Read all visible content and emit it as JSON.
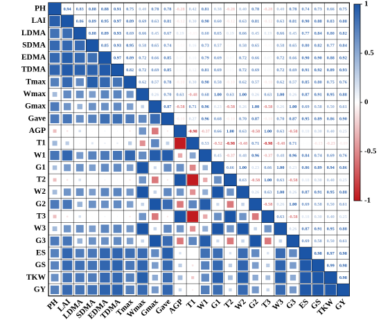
{
  "chart_data": {
    "type": "correlogram",
    "variables": [
      "PH",
      "LAI",
      "LDMA",
      "SDMA",
      "EDMA",
      "TDMA",
      "Tmax",
      "Wmax",
      "Gmax",
      "Gave",
      "AGP",
      "T1",
      "W1",
      "G1",
      "T2",
      "W2",
      "G2",
      "T3",
      "W3",
      "G3",
      "ES",
      "GS",
      "TKW",
      "GY"
    ],
    "values": [
      [
        0.94,
        0.83,
        0.88,
        0.88,
        0.91,
        0.75,
        0.4,
        0.78,
        0.78,
        -0.28,
        0.42,
        0.81,
        0.38,
        -0.28,
        0.4,
        0.78,
        -0.28,
        0.4,
        0.78,
        0.74,
        0.73,
        0.66,
        0.75
      ],
      [
        0.86,
        0.89,
        0.95,
        0.97,
        0.89,
        0.69,
        0.63,
        0.81,
        -0.12,
        0.3,
        0.9,
        0.6,
        -0.12,
        0.63,
        0.81,
        -0.12,
        0.63,
        0.81,
        0.9,
        0.88,
        0.83,
        0.88
      ],
      [
        0.88,
        0.89,
        0.93,
        0.69,
        0.66,
        0.45,
        0.67,
        0.19,
        -0.05,
        0.6,
        0.65,
        0.19,
        0.66,
        0.45,
        0.19,
        0.66,
        0.45,
        0.77,
        0.84,
        0.8,
        0.82
      ],
      [
        0.85,
        0.93,
        0.95,
        0.58,
        0.65,
        0.74,
        -0.03,
        0.16,
        0.73,
        0.57,
        -0.03,
        0.58,
        0.65,
        -0.03,
        0.58,
        0.65,
        0.8,
        0.82,
        0.77,
        0.84
      ],
      [
        0.97,
        0.89,
        0.72,
        0.66,
        0.85,
        0.07,
        0.1,
        0.79,
        0.69,
        0.07,
        0.72,
        0.66,
        0.07,
        0.72,
        0.66,
        0.9,
        0.9,
        0.88,
        0.92
      ],
      [
        0.82,
        0.72,
        0.69,
        0.85,
        0.05,
        0.12,
        0.81,
        0.69,
        0.05,
        0.72,
        0.69,
        0.05,
        0.72,
        0.69,
        0.91,
        0.92,
        0.89,
        0.93
      ],
      [
        0.62,
        0.57,
        0.78,
        -0.1,
        0.3,
        0.9,
        0.58,
        -0.1,
        0.62,
        0.57,
        -0.1,
        0.62,
        0.57,
        0.85,
        0.8,
        0.75,
        0.76
      ],
      [
        0.26,
        0.7,
        0.63,
        -0.48,
        0.68,
        1.0,
        0.63,
        1.0,
        0.26,
        0.63,
        1.0,
        0.26,
        0.87,
        0.91,
        0.95,
        0.88
      ],
      [
        0.87,
        -0.58,
        0.71,
        0.96,
        0.23,
        -0.58,
        0.26,
        1.0,
        -0.58,
        0.26,
        1.0,
        0.69,
        0.58,
        0.5,
        0.61
      ],
      [
        -0.1,
        0.27,
        0.96,
        0.68,
        -0.1,
        0.7,
        0.87,
        -0.1,
        0.7,
        0.87,
        0.95,
        0.89,
        0.86,
        0.9
      ],
      [
        -0.98,
        -0.37,
        0.66,
        1.0,
        0.63,
        -0.58,
        1.0,
        0.63,
        -0.58,
        0.18,
        0.3,
        0.4,
        0.25
      ],
      [
        0.53,
        -0.52,
        -0.98,
        -0.48,
        0.71,
        -0.98,
        -0.48,
        0.71,
        -0.01,
        -0.13,
        -0.23,
        -0.09
      ],
      [
        0.45,
        -0.37,
        0.48,
        0.96,
        -0.37,
        0.48,
        0.96,
        0.84,
        0.74,
        0.69,
        0.76
      ],
      [
        0.66,
        1.0,
        0.23,
        0.66,
        1.0,
        0.23,
        0.86,
        0.89,
        0.94,
        0.86
      ],
      [
        0.63,
        -0.58,
        1.0,
        0.63,
        -0.58,
        0.18,
        0.3,
        0.4,
        0.25
      ],
      [
        0.26,
        0.63,
        1.0,
        0.26,
        0.87,
        0.91,
        0.95,
        0.88
      ],
      [
        -0.58,
        0.26,
        1.0,
        0.69,
        0.58,
        0.5,
        0.61
      ],
      [
        0.63,
        -0.58,
        0.18,
        0.3,
        0.4,
        0.25
      ],
      [
        0.26,
        0.87,
        0.91,
        0.95,
        0.88
      ],
      [
        0.69,
        0.58,
        0.5,
        0.61
      ],
      [
        0.98,
        0.97,
        0.98
      ],
      [
        0.99,
        0.98
      ],
      [
        0.98
      ]
    ],
    "value_labels": [
      [
        "0.94",
        "0.83",
        "0.88",
        "0.88",
        "0.91",
        "0.75",
        "0.40",
        "0.78",
        "0.78",
        "-0.28",
        "0.42",
        "0.81",
        "0.38",
        "-0.28",
        "0.40",
        "0.78",
        "-0.28",
        "0.40",
        "0.78",
        "0.74",
        "0.73",
        "0.66",
        "0.75"
      ],
      [
        "0.86",
        "0.89",
        "0.95",
        "0.97",
        "0.89",
        "0.69",
        "0.63",
        "0.81",
        "-0.12",
        "0.30",
        "0.90",
        "0.60",
        "-0.12",
        "0.63",
        "0.81",
        "-0.12",
        "0.63",
        "0.81",
        "0.90",
        "0.88",
        "0.83",
        "0.88"
      ],
      [
        "0.88",
        "0.89",
        "0.93",
        "0.69",
        "0.66",
        "0.45",
        "0.67",
        "0.19",
        "-0.05",
        "0.60",
        "0.65",
        "0.19",
        "0.66",
        "0.45",
        "0.19",
        "0.66",
        "0.45",
        "0.77",
        "0.84",
        "0.80",
        "0.82"
      ],
      [
        "0.85",
        "0.93",
        "0.95",
        "0.58",
        "0.65",
        "0.74",
        "-0.03",
        "0.16",
        "0.73",
        "0.57",
        "-0.03",
        "0.58",
        "0.65",
        "-0.03",
        "0.58",
        "0.65",
        "0.80",
        "0.82",
        "0.77",
        "0.84"
      ],
      [
        "0.97",
        "0.89",
        "0.72",
        "0.66",
        "0.85",
        "0.07",
        "0.10",
        "0.79",
        "0.69",
        "0.07",
        "0.72",
        "0.66",
        "0.07",
        "0.72",
        "0.66",
        "0.90",
        "0.90",
        "0.88",
        "0.92"
      ],
      [
        "0.82",
        "0.72",
        "0.69",
        "0.85",
        "0.05",
        "0.12",
        "0.81",
        "0.69",
        "0.05",
        "0.72",
        "0.69",
        "0.05",
        "0.72",
        "0.69",
        "0.91",
        "0.92",
        "0.89",
        "0.93"
      ],
      [
        "0.62",
        "0.57",
        "0.78",
        "-0.10",
        "0.30",
        "0.90",
        "0.58",
        "-0.10",
        "0.62",
        "0.57",
        "-0.10",
        "0.62",
        "0.57",
        "0.85",
        "0.80",
        "0.75",
        "0.76"
      ],
      [
        "0.26",
        "0.70",
        "0.63",
        "-0.48",
        "0.68",
        "1.00",
        "0.63",
        "1.00",
        "0.26",
        "0.63",
        "1.00",
        "0.26",
        "0.87",
        "0.91",
        "0.95",
        "0.88"
      ],
      [
        "0.87",
        "-0.58",
        "0.71",
        "0.96",
        "0.23",
        "-0.58",
        "0.26",
        "1.00",
        "-0.58",
        "0.26",
        "1.00",
        "0.69",
        "0.58",
        "0.50",
        "0.61"
      ],
      [
        "-0.10",
        "0.27",
        "0.96",
        "0.68",
        "-0.10",
        "0.70",
        "0.87",
        "-0.10",
        "0.70",
        "0.87",
        "0.95",
        "0.89",
        "0.86",
        "0.90"
      ],
      [
        "-0.98",
        "-0.37",
        "0.66",
        "1.00",
        "0.63",
        "-0.58",
        "1.00",
        "0.63",
        "-0.58",
        "0.18",
        "0.30",
        "0.40",
        "0.25"
      ],
      [
        "0.53",
        "-0.52",
        "-0.98",
        "-0.48",
        "0.71",
        "-0.98",
        "-0.48",
        "0.71",
        "-0.01",
        "-0.13",
        "-0.23",
        "-0.09"
      ],
      [
        "0.45",
        "-0.37",
        "0.48",
        "0.96",
        "-0.37",
        "0.48",
        "0.96",
        "0.84",
        "0.74",
        "0.69",
        "0.76"
      ],
      [
        "0.66",
        "1.00",
        "0.23",
        "0.66",
        "1.00",
        "0.23",
        "0.86",
        "0.89",
        "0.94",
        "0.86"
      ],
      [
        "0.63",
        "-0.58",
        "1.00",
        "0.63",
        "-0.58",
        "0.18",
        "0.30",
        "0.40",
        "0.25"
      ],
      [
        "0.26",
        "0.63",
        "1.00",
        "0.26",
        "0.87",
        "0.91",
        "0.95",
        "0.88"
      ],
      [
        "-0.58",
        "0.26",
        "1.00",
        "0.69",
        "0.58",
        "0.50",
        "0.61"
      ],
      [
        "0.63",
        "-0.58",
        "0.18",
        "0.30",
        "0.40",
        "0.25"
      ],
      [
        "0.26",
        "0.87",
        "0.91",
        "0.95",
        "0.88"
      ],
      [
        "0.69",
        "0.58",
        "0.50",
        "0.61"
      ],
      [
        "0.98",
        "0.97",
        "0.98"
      ],
      [
        "0.99",
        "0.98"
      ],
      [
        "0.98"
      ]
    ],
    "clim": [
      -1,
      1
    ],
    "cticks": [
      1,
      0.5,
      0,
      -0.5,
      -1
    ],
    "colors": {
      "negative": "#c0161b",
      "zero": "#ffffff",
      "positive": "#1b55a6"
    }
  }
}
